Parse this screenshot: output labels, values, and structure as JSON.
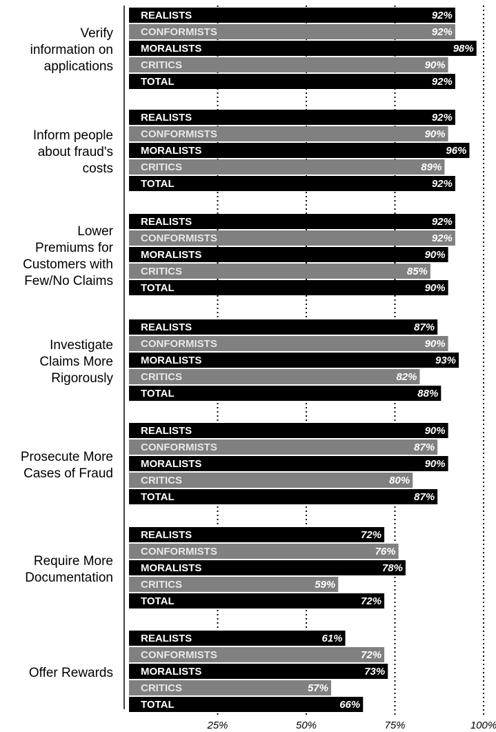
{
  "chart_data": {
    "type": "bar",
    "orientation": "horizontal",
    "grouped": true,
    "x_axis": {
      "ticks": [
        25,
        50,
        75,
        100
      ],
      "tick_labels": [
        "25%",
        "50%",
        "75%",
        "100%"
      ],
      "xlim": [
        0,
        100
      ]
    },
    "grid": "dotted-vertical",
    "series_names": [
      "REALISTS",
      "CONFORMISTS",
      "MORALISTS",
      "CRITICS",
      "TOTAL"
    ],
    "series_colors": [
      "#000000",
      "#808080",
      "#000000",
      "#808080",
      "#000000"
    ],
    "groups": [
      {
        "label": [
          "Verify",
          "information on",
          "applications"
        ],
        "values": [
          92,
          92,
          98,
          90,
          92
        ]
      },
      {
        "label": [
          "Inform people",
          "about fraud's",
          "costs"
        ],
        "values": [
          92,
          90,
          96,
          89,
          92
        ]
      },
      {
        "label": [
          "Lower",
          "Premiums for",
          "Customers with",
          "Few/No Claims"
        ],
        "values": [
          92,
          92,
          90,
          85,
          90
        ]
      },
      {
        "label": [
          "Investigate",
          "Claims More",
          "Rigorously"
        ],
        "values": [
          87,
          90,
          93,
          82,
          88
        ]
      },
      {
        "label": [
          "Prosecute More",
          "Cases of Fraud"
        ],
        "values": [
          90,
          87,
          90,
          80,
          87
        ]
      },
      {
        "label": [
          "Require More",
          "Documentation"
        ],
        "values": [
          72,
          76,
          78,
          59,
          72
        ]
      },
      {
        "label": [
          "Offer Rewards"
        ],
        "values": [
          61,
          72,
          73,
          57,
          66
        ]
      }
    ]
  }
}
